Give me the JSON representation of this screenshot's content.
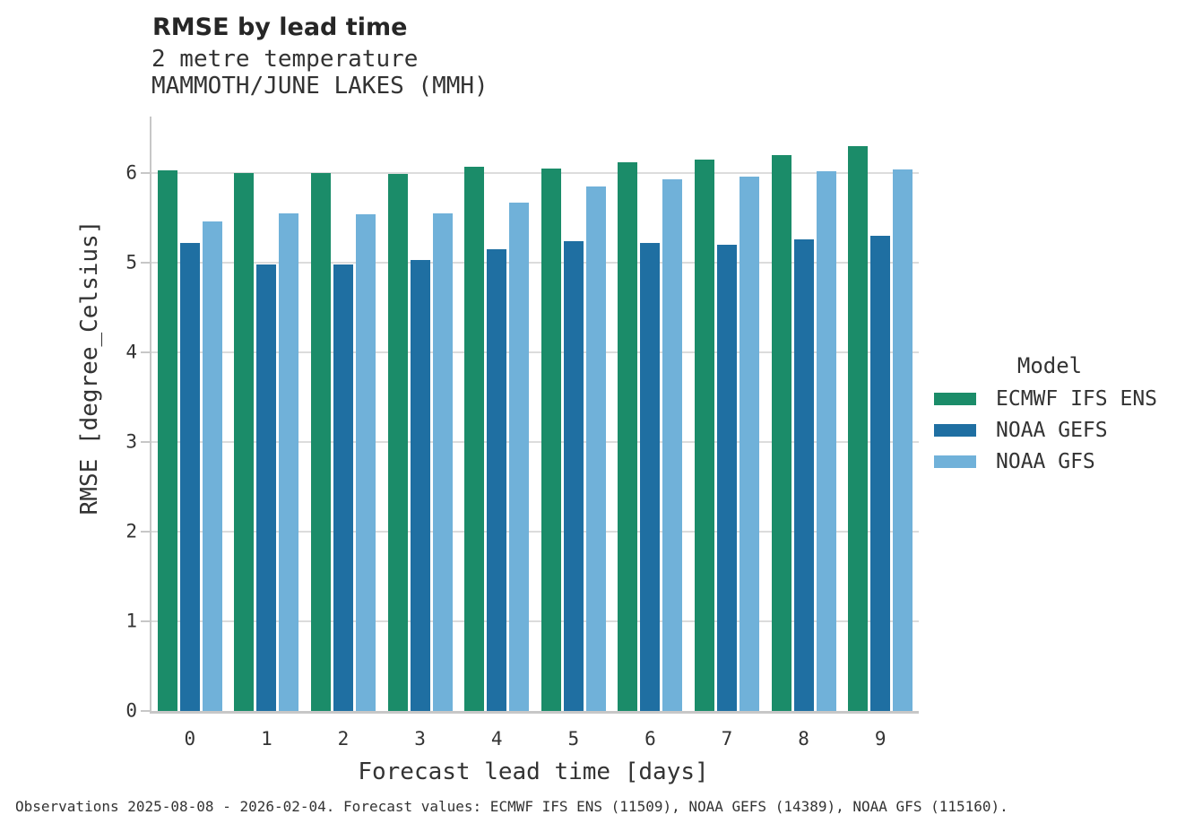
{
  "chart_data": {
    "type": "bar",
    "title": "RMSE by lead time",
    "subtitle1": "2 metre temperature",
    "subtitle2": "MAMMOTH/JUNE LAKES (MMH)",
    "categories": [
      "0",
      "1",
      "2",
      "3",
      "4",
      "5",
      "6",
      "7",
      "8",
      "9"
    ],
    "series": [
      {
        "name": "ECMWF IFS ENS",
        "color": "#1b8c69",
        "values": [
          6.03,
          6.0,
          6.0,
          5.99,
          6.07,
          6.05,
          6.12,
          6.15,
          6.2,
          6.3
        ]
      },
      {
        "name": "NOAA GEFS",
        "color": "#1f6fa2",
        "values": [
          5.22,
          4.98,
          4.98,
          5.03,
          5.15,
          5.24,
          5.22,
          5.2,
          5.26,
          5.3
        ]
      },
      {
        "name": "NOAA GFS",
        "color": "#70b1d9",
        "values": [
          5.46,
          5.55,
          5.54,
          5.55,
          5.67,
          5.85,
          5.93,
          5.96,
          6.02,
          6.04
        ]
      }
    ],
    "xlabel": "Forecast lead time [days]",
    "ylabel": "RMSE [degree_Celsius]",
    "ylim": [
      0,
      6.63
    ],
    "yticks": [
      0,
      1,
      2,
      3,
      4,
      5,
      6
    ],
    "grid": true,
    "legend_title": "Model",
    "legend_position": "right"
  },
  "footer": {
    "text": "Observations 2025-08-08 - 2026-02-04. Forecast values: ECMWF IFS ENS (11509), NOAA GEFS (14389), NOAA GFS (115160)."
  },
  "colors": {
    "background": "#ffffff",
    "axis": "#c7c7c7",
    "grid": "#dcdcdc",
    "text": "#333333",
    "title": "#262626"
  }
}
